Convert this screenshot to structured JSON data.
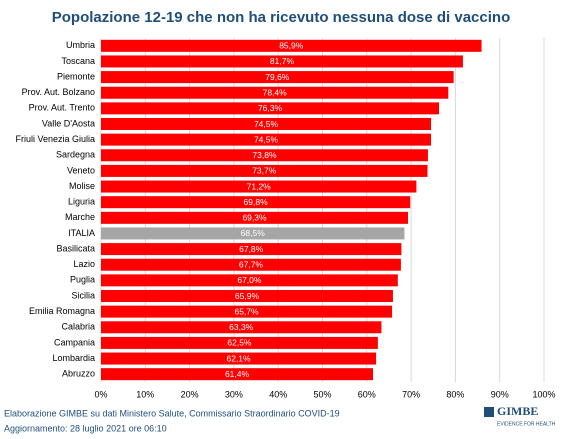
{
  "chart_data": {
    "type": "hbar",
    "title": "Popolazione 12-19 che non ha ricevuto nessuna dose di vaccino",
    "categories": [
      "Umbria",
      "Toscana",
      "Piemonte",
      "Prov. Aut. Bolzano",
      "Prov. Aut. Trento",
      "Valle D'Aosta",
      "Friuli Venezia Giulia",
      "Sardegna",
      "Veneto",
      "Molise",
      "Liguria",
      "Marche",
      "ITALIA",
      "Basilicata",
      "Lazio",
      "Puglia",
      "Sicilia",
      "Emilia Romagna",
      "Calabria",
      "Campania",
      "Lombardia",
      "Abruzzo"
    ],
    "values": [
      85.9,
      81.7,
      79.6,
      78.4,
      76.3,
      74.5,
      74.5,
      73.8,
      73.7,
      71.2,
      69.8,
      69.3,
      68.5,
      67.8,
      67.7,
      67.0,
      65.9,
      65.7,
      63.3,
      62.5,
      62.1,
      61.4
    ],
    "value_labels": [
      "85,9%",
      "81,7%",
      "79,6%",
      "78,4%",
      "76,3%",
      "74,5%",
      "74,5%",
      "73,8%",
      "73,7%",
      "71,2%",
      "69,8%",
      "69,3%",
      "68,5%",
      "67,8%",
      "67,7%",
      "67,0%",
      "65,9%",
      "65,7%",
      "63,3%",
      "62,5%",
      "62,1%",
      "61,4%"
    ],
    "colors": [
      "#ff0000",
      "#ff0000",
      "#ff0000",
      "#ff0000",
      "#ff0000",
      "#ff0000",
      "#ff0000",
      "#ff0000",
      "#ff0000",
      "#ff0000",
      "#ff0000",
      "#ff0000",
      "#a6a6a6",
      "#ff0000",
      "#ff0000",
      "#ff0000",
      "#ff0000",
      "#ff0000",
      "#ff0000",
      "#ff0000",
      "#ff0000",
      "#ff0000"
    ],
    "xlim": [
      0,
      100
    ],
    "xticks": [
      {
        "value": 0,
        "label": "0%"
      },
      {
        "value": 10,
        "label": "10%"
      },
      {
        "value": 20,
        "label": "20%"
      },
      {
        "value": 30,
        "label": "30%"
      },
      {
        "value": 40,
        "label": "40%"
      },
      {
        "value": 50,
        "label": "50%"
      },
      {
        "value": 60,
        "label": "60%"
      },
      {
        "value": 70,
        "label": "70%"
      },
      {
        "value": 80,
        "label": "80%"
      },
      {
        "value": 90,
        "label": "90%"
      },
      {
        "value": 100,
        "label": "100%"
      }
    ],
    "grid": true,
    "source": "Elaborazione GIMBE su dati Ministero Salute, Commissario Straordinario COVID-19",
    "updated": "Aggiornamento: 28 luglio 2021 ore 06:10",
    "logo": "GIMBE",
    "logo_tagline": "EVIDENCE FOR HEALTH"
  }
}
